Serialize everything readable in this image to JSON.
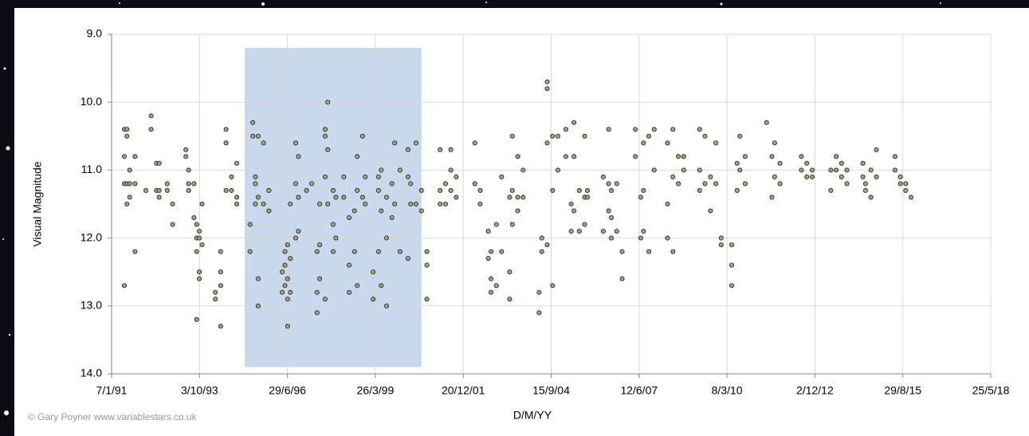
{
  "chart_data": {
    "type": "scatter",
    "x_label": "D/M/YY",
    "y_label": "Visual Magnitude",
    "annotations": [
      "© Gary Poyner www.variablestars.co.uk"
    ],
    "xlim": [
      "1991-01-07",
      "2018-05-25"
    ],
    "xticks": [
      {
        "value": "1991-01-07",
        "label": "7/1/91"
      },
      {
        "value": "1993-10-03",
        "label": "3/10/93"
      },
      {
        "value": "1996-06-29",
        "label": "29/6/96"
      },
      {
        "value": "1999-03-26",
        "label": "26/3/99"
      },
      {
        "value": "2001-12-20",
        "label": "20/12/01"
      },
      {
        "value": "2004-09-15",
        "label": "15/9/04"
      },
      {
        "value": "2007-06-12",
        "label": "12/6/07"
      },
      {
        "value": "2010-03-08",
        "label": "8/3/10"
      },
      {
        "value": "2012-12-02",
        "label": "2/12/12"
      },
      {
        "value": "2015-08-29",
        "label": "29/8/15"
      },
      {
        "value": "2018-05-25",
        "label": "25/5/18"
      }
    ],
    "ylim": [
      14,
      9
    ],
    "yticks": [
      {
        "value": 9,
        "label": "9.0"
      },
      {
        "value": 10,
        "label": "10.0"
      },
      {
        "value": 11,
        "label": "11.0"
      },
      {
        "value": 12,
        "label": "12.0"
      },
      {
        "value": 13,
        "label": "13.0"
      },
      {
        "value": 14,
        "label": "14.0"
      }
    ],
    "grid": true,
    "color": "#a4a67a",
    "shaded_region": {
      "xlim": [
        "1995-03",
        "2000-09"
      ],
      "ylim": [
        13.9,
        9.2
      ],
      "color": "#c9d8ec"
    },
    "x": [
      "1991-06",
      "1991-06",
      "1991-06",
      "1991-06",
      "1991-07",
      "1991-07",
      "1991-07",
      "1991-07",
      "1991-08",
      "1991-08",
      "1991-08",
      "1991-10",
      "1991-10",
      "1991-10",
      "1992-02",
      "1992-04",
      "1992-04",
      "1992-06",
      "1992-06",
      "1992-07",
      "1992-07",
      "1992-07",
      "1992-10",
      "1992-10",
      "1992-12",
      "1992-12",
      "1993-05",
      "1993-05",
      "1993-06",
      "1993-06",
      "1993-06",
      "1993-08",
      "1993-08",
      "1993-09",
      "1993-09",
      "1993-09",
      "1993-09",
      "1993-10",
      "1993-10",
      "1993-10",
      "1993-10",
      "1993-11",
      "1993-11",
      "1994-04",
      "1994-04",
      "1994-06",
      "1994-06",
      "1994-06",
      "1994-06",
      "1994-08",
      "1994-08",
      "1994-08",
      "1994-10",
      "1994-10",
      "1994-12",
      "1994-12",
      "1994-12",
      "1995-05",
      "1995-05",
      "1995-06",
      "1995-06",
      "1995-07",
      "1995-07",
      "1995-07",
      "1995-08",
      "1995-08",
      "1995-08",
      "1995-08",
      "1995-10",
      "1995-10",
      "1995-12",
      "1995-12",
      "1996-05",
      "1996-05",
      "1996-06",
      "1996-06",
      "1996-06",
      "1996-07",
      "1996-07",
      "1996-07",
      "1996-07",
      "1996-08",
      "1996-08",
      "1996-08",
      "1996-10",
      "1996-10",
      "1996-10",
      "1996-11",
      "1996-11",
      "1996-11",
      "1997-02",
      "1997-04",
      "1997-06",
      "1997-06",
      "1997-06",
      "1997-07",
      "1997-07",
      "1997-07",
      "1997-09",
      "1997-09",
      "1997-09",
      "1997-09",
      "1997-10",
      "1997-10",
      "1997-10",
      "1997-12",
      "1997-12",
      "1997-12",
      "1998-01",
      "1998-01",
      "1998-04",
      "1998-04",
      "1998-06",
      "1998-06",
      "1998-06",
      "1998-08",
      "1998-08",
      "1998-09",
      "1998-09",
      "1998-09",
      "1998-11",
      "1998-11",
      "1998-12",
      "1998-12",
      "1999-03",
      "1999-03",
      "1999-05",
      "1999-05",
      "1999-05",
      "1999-06",
      "1999-06",
      "1999-06",
      "1999-08",
      "1999-08",
      "1999-08",
      "1999-10",
      "1999-10",
      "1999-11",
      "1999-11",
      "2000-01",
      "2000-01",
      "2000-04",
      "2000-04",
      "2000-04",
      "2000-05",
      "2000-05",
      "2000-07",
      "2000-07",
      "2000-09",
      "2000-09",
      "2000-11",
      "2000-11",
      "2000-11",
      "2001-04",
      "2001-04",
      "2001-04",
      "2001-06",
      "2001-06",
      "2001-08",
      "2001-08",
      "2001-08",
      "2001-10",
      "2001-10",
      "2002-05",
      "2002-05",
      "2002-07",
      "2002-07",
      "2002-10",
      "2002-10",
      "2002-11",
      "2002-11",
      "2002-11",
      "2003-01",
      "2003-01",
      "2003-03",
      "2003-03",
      "2003-06",
      "2003-06",
      "2003-06",
      "2003-07",
      "2003-07",
      "2003-07",
      "2003-09",
      "2003-09",
      "2003-09",
      "2003-11",
      "2003-11",
      "2004-05",
      "2004-05",
      "2004-06",
      "2004-06",
      "2004-08",
      "2004-08",
      "2004-08",
      "2004-08",
      "2004-10",
      "2004-10",
      "2004-10",
      "2004-12",
      "2004-12",
      "2005-03",
      "2005-03",
      "2005-05",
      "2005-05",
      "2005-06",
      "2005-06",
      "2005-06",
      "2005-08",
      "2005-08",
      "2005-10",
      "2005-10",
      "2005-10",
      "2005-11",
      "2005-11",
      "2006-05",
      "2006-05",
      "2006-07",
      "2006-07",
      "2006-07",
      "2006-08",
      "2006-08",
      "2006-08",
      "2006-10",
      "2006-10",
      "2006-12",
      "2006-12",
      "2007-05",
      "2007-05",
      "2007-07",
      "2007-07",
      "2007-08",
      "2007-08",
      "2007-08",
      "2007-10",
      "2007-10",
      "2007-12",
      "2007-12",
      "2008-05",
      "2008-05",
      "2008-05",
      "2008-07",
      "2008-07",
      "2008-07",
      "2008-09",
      "2008-09",
      "2008-11",
      "2008-11",
      "2009-05",
      "2009-05",
      "2009-05",
      "2009-07",
      "2009-07",
      "2009-09",
      "2009-09",
      "2009-11",
      "2009-11",
      "2010-01",
      "2010-01",
      "2010-05",
      "2010-05",
      "2010-05",
      "2010-07",
      "2010-07",
      "2010-08",
      "2010-08",
      "2010-10",
      "2010-10",
      "2011-06",
      "2011-08",
      "2011-08",
      "2011-09",
      "2011-09",
      "2011-11",
      "2011-11",
      "2012-07",
      "2012-07",
      "2012-09",
      "2012-09",
      "2012-11",
      "2012-11",
      "2013-06",
      "2013-06",
      "2013-08",
      "2013-08",
      "2013-10",
      "2013-10",
      "2013-12",
      "2013-12",
      "2014-06",
      "2014-06",
      "2014-07",
      "2014-07",
      "2014-09",
      "2014-09",
      "2014-11",
      "2014-11",
      "2015-06",
      "2015-06",
      "2015-08",
      "2015-08",
      "2015-10",
      "2015-10",
      "2015-12"
    ],
    "values": [
      12.7,
      10.4,
      10.8,
      11.2,
      10.4,
      10.5,
      11.5,
      11.2,
      11.0,
      11.2,
      11.4,
      11.2,
      10.8,
      12.2,
      11.3,
      10.2,
      10.4,
      10.9,
      11.3,
      11.3,
      11.4,
      10.9,
      11.3,
      11.2,
      11.5,
      11.8,
      10.7,
      10.8,
      11.0,
      11.2,
      11.3,
      11.2,
      11.7,
      12.0,
      12.2,
      11.8,
      13.2,
      12.5,
      12.6,
      12.0,
      11.9,
      12.1,
      11.5,
      12.8,
      12.9,
      12.5,
      12.7,
      13.3,
      12.2,
      11.3,
      10.4,
      10.6,
      11.1,
      11.3,
      10.9,
      11.4,
      11.5,
      12.2,
      11.8,
      10.3,
      10.5,
      11.2,
      11.5,
      11.1,
      11.4,
      12.6,
      13.0,
      10.5,
      10.6,
      11.5,
      11.3,
      11.6,
      12.8,
      12.5,
      12.2,
      12.4,
      12.7,
      12.1,
      12.6,
      12.9,
      13.3,
      11.5,
      12.3,
      12.8,
      10.6,
      11.2,
      12.0,
      10.8,
      11.4,
      11.9,
      11.3,
      11.2,
      12.8,
      12.2,
      13.1,
      12.1,
      12.6,
      11.5,
      10.4,
      10.5,
      11.1,
      12.9,
      10.7,
      10.0,
      11.5,
      11.8,
      12.2,
      11.3,
      12.0,
      11.4,
      11.1,
      11.4,
      12.4,
      12.8,
      11.7,
      12.2,
      11.6,
      10.8,
      11.3,
      12.7,
      10.5,
      11.4,
      11.1,
      11.5,
      12.9,
      12.5,
      11.1,
      12.2,
      11.3,
      11.0,
      12.7,
      11.6,
      11.4,
      13.0,
      12.0,
      11.2,
      11.7,
      10.6,
      11.5,
      12.2,
      11.0,
      10.7,
      11.1,
      12.3,
      11.2,
      11.5,
      10.6,
      11.5,
      11.3,
      11.6,
      12.2,
      12.4,
      12.9,
      10.7,
      11.3,
      11.5,
      11.2,
      11.5,
      10.7,
      11.0,
      11.3,
      11.1,
      11.4,
      10.6,
      11.2,
      11.5,
      11.3,
      11.9,
      12.3,
      12.2,
      12.6,
      12.8,
      12.7,
      11.8,
      11.1,
      12.2,
      11.4,
      12.9,
      12.5,
      10.5,
      11.3,
      11.8,
      10.8,
      11.4,
      11.6,
      11.0,
      11.4,
      12.8,
      13.1,
      12.0,
      12.2,
      10.6,
      9.7,
      9.8,
      12.1,
      10.5,
      12.7,
      11.3,
      10.5,
      11.0,
      10.4,
      10.8,
      11.5,
      11.9,
      10.3,
      10.8,
      11.6,
      11.3,
      11.9,
      10.5,
      11.4,
      11.8,
      11.3,
      11.4,
      11.1,
      11.9,
      10.4,
      11.2,
      11.6,
      11.3,
      11.7,
      12.0,
      11.2,
      11.9,
      12.6,
      12.2,
      10.4,
      10.8,
      11.4,
      12.0,
      10.6,
      11.3,
      11.9,
      12.2,
      10.5,
      10.4,
      11.0,
      10.6,
      11.5,
      12.0,
      10.4,
      11.1,
      12.2,
      10.8,
      11.2,
      10.8,
      11.0,
      10.4,
      11.0,
      11.3,
      10.5,
      11.2,
      11.1,
      11.6,
      10.6,
      11.2,
      12.0,
      12.1,
      12.1,
      12.4,
      12.7,
      11.3,
      10.9,
      10.5,
      11.0,
      11.2,
      10.8,
      10.3,
      10.8,
      11.4,
      10.6,
      11.1,
      11.2,
      10.9,
      10.8,
      11.0,
      11.1,
      10.9,
      11.0,
      11.1,
      11.0,
      11.3,
      10.8,
      11.0,
      11.1,
      10.9,
      11.0,
      11.2,
      11.1,
      10.9,
      11.3,
      11.2,
      11.0,
      11.4,
      10.7,
      11.1,
      10.8,
      11.0,
      11.2,
      11.1,
      11.2,
      11.3,
      11.4
    ]
  }
}
